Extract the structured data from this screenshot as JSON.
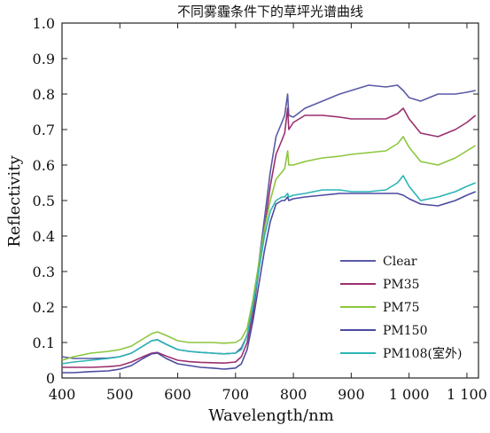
{
  "chart_data": {
    "type": "line",
    "title": "不同雾霾条件下的草坪光谱曲线",
    "xlabel": "Wavelength/nm",
    "ylabel": "Reflectivity",
    "xlim": [
      400,
      1120
    ],
    "ylim": [
      0,
      1.0
    ],
    "x_ticks": [
      400,
      500,
      600,
      700,
      800,
      900,
      1000,
      1100
    ],
    "x_tick_labels": [
      "400",
      "500",
      "600",
      "700",
      "800",
      "900",
      "1 000",
      "1 100"
    ],
    "y_ticks": [
      0,
      0.1,
      0.2,
      0.3,
      0.4,
      0.5,
      0.6,
      0.7,
      0.8,
      0.9,
      1.0
    ],
    "y_tick_labels": [
      "0",
      "0.1",
      "0.2",
      "0.3",
      "0.4",
      "0.5",
      "0.6",
      "0.7",
      "0.8",
      "0.9",
      "1.0"
    ],
    "grid": false,
    "legend_position": "bottom-right",
    "x": [
      400,
      420,
      450,
      480,
      500,
      520,
      540,
      555,
      565,
      580,
      600,
      620,
      640,
      660,
      680,
      700,
      710,
      720,
      730,
      740,
      750,
      760,
      770,
      780,
      785,
      790,
      792,
      800,
      820,
      850,
      880,
      900,
      930,
      960,
      980,
      990,
      1000,
      1020,
      1050,
      1080,
      1100,
      1115
    ],
    "series": [
      {
        "name": "Clear",
        "color": "#5a5aa6",
        "values": [
          0.06,
          0.055,
          0.055,
          0.056,
          0.06,
          0.07,
          0.09,
          0.105,
          0.108,
          0.095,
          0.08,
          0.075,
          0.072,
          0.07,
          0.068,
          0.07,
          0.085,
          0.12,
          0.2,
          0.32,
          0.45,
          0.58,
          0.68,
          0.72,
          0.74,
          0.8,
          0.74,
          0.735,
          0.76,
          0.78,
          0.8,
          0.81,
          0.825,
          0.82,
          0.825,
          0.81,
          0.79,
          0.78,
          0.8,
          0.8,
          0.805,
          0.81
        ]
      },
      {
        "name": "PM35",
        "color": "#9b2f6f",
        "values": [
          0.03,
          0.03,
          0.03,
          0.032,
          0.035,
          0.045,
          0.06,
          0.07,
          0.072,
          0.062,
          0.05,
          0.046,
          0.044,
          0.043,
          0.042,
          0.045,
          0.06,
          0.1,
          0.18,
          0.3,
          0.42,
          0.54,
          0.63,
          0.67,
          0.69,
          0.76,
          0.7,
          0.72,
          0.74,
          0.74,
          0.735,
          0.73,
          0.73,
          0.73,
          0.745,
          0.76,
          0.73,
          0.69,
          0.68,
          0.7,
          0.72,
          0.74
        ]
      },
      {
        "name": "PM75",
        "color": "#8cc63f",
        "values": [
          0.05,
          0.06,
          0.07,
          0.075,
          0.08,
          0.09,
          0.11,
          0.125,
          0.13,
          0.12,
          0.105,
          0.1,
          0.1,
          0.1,
          0.098,
          0.1,
          0.11,
          0.14,
          0.22,
          0.32,
          0.42,
          0.5,
          0.56,
          0.58,
          0.59,
          0.64,
          0.6,
          0.6,
          0.61,
          0.62,
          0.625,
          0.63,
          0.635,
          0.64,
          0.66,
          0.68,
          0.65,
          0.61,
          0.6,
          0.62,
          0.64,
          0.655
        ]
      },
      {
        "name": "PM150",
        "color": "#4b4ba0",
        "values": [
          0.015,
          0.015,
          0.018,
          0.02,
          0.025,
          0.035,
          0.055,
          0.068,
          0.07,
          0.055,
          0.04,
          0.035,
          0.03,
          0.028,
          0.025,
          0.028,
          0.04,
          0.08,
          0.16,
          0.26,
          0.36,
          0.44,
          0.49,
          0.5,
          0.5,
          0.51,
          0.5,
          0.505,
          0.51,
          0.515,
          0.52,
          0.52,
          0.52,
          0.52,
          0.52,
          0.515,
          0.505,
          0.49,
          0.485,
          0.5,
          0.515,
          0.525
        ]
      },
      {
        "name": "PM108(室外)",
        "color": "#2cb5b5",
        "values": [
          0.04,
          0.045,
          0.05,
          0.055,
          0.06,
          0.07,
          0.09,
          0.105,
          0.107,
          0.095,
          0.08,
          0.075,
          0.072,
          0.07,
          0.068,
          0.07,
          0.08,
          0.12,
          0.2,
          0.3,
          0.4,
          0.47,
          0.5,
          0.51,
          0.51,
          0.52,
          0.51,
          0.515,
          0.52,
          0.53,
          0.53,
          0.525,
          0.525,
          0.53,
          0.55,
          0.57,
          0.54,
          0.5,
          0.51,
          0.525,
          0.54,
          0.55
        ]
      }
    ]
  }
}
